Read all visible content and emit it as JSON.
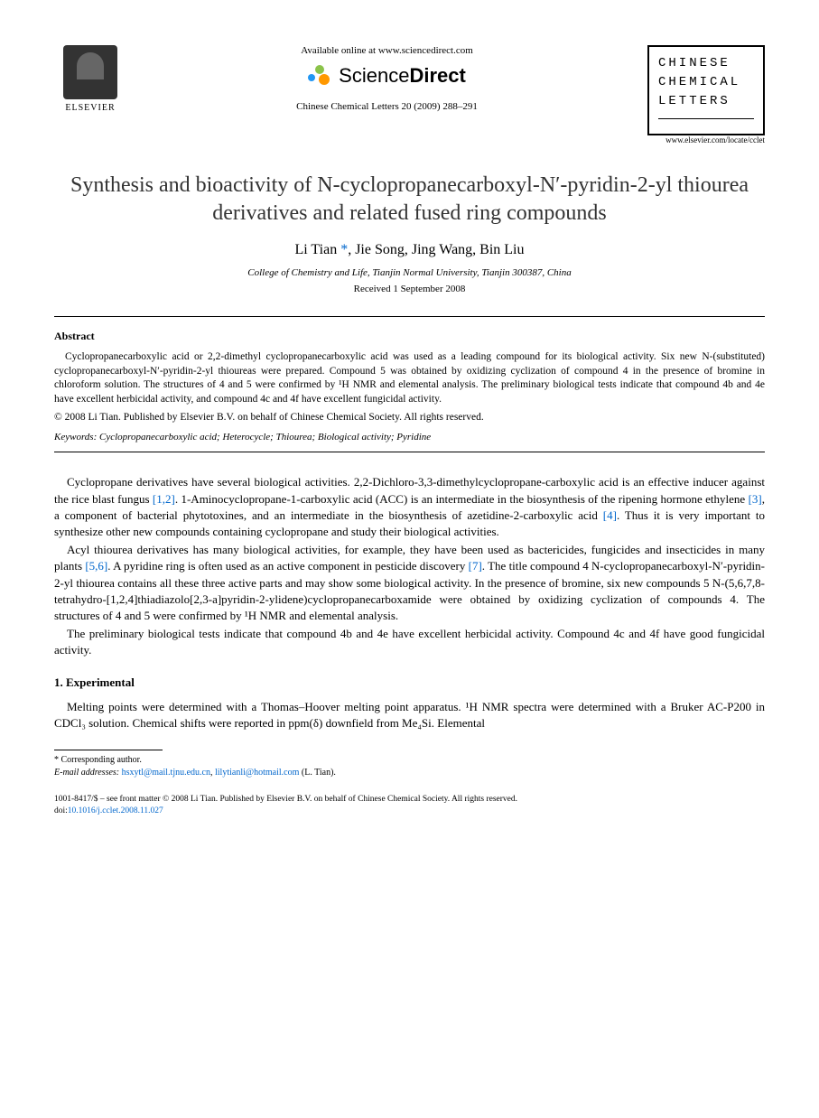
{
  "header": {
    "elsevier": "ELSEVIER",
    "available": "Available online at www.sciencedirect.com",
    "sciencedirect": {
      "part1": "Science",
      "part2": "Direct"
    },
    "journal_ref": "Chinese Chemical Letters 20 (2009) 288–291",
    "journal_box": {
      "line1": "CHINESE",
      "line2": "CHEMICAL",
      "line3": "LETTERS"
    },
    "url": "www.elsevier.com/locate/cclet"
  },
  "title": "Synthesis and bioactivity of N-cyclopropanecarboxyl-N′-pyridin-2-yl thiourea derivatives and related fused ring compounds",
  "authors": "Li Tian *, Jie Song, Jing Wang, Bin Liu",
  "affiliation": "College of Chemistry and Life, Tianjin Normal University, Tianjin 300387, China",
  "received": "Received 1 September 2008",
  "abstract": {
    "heading": "Abstract",
    "body": "Cyclopropanecarboxylic acid or 2,2-dimethyl cyclopropanecarboxylic acid was used as a leading compound for its biological activity. Six new N-(substituted) cyclopropanecarboxyl-N′-pyridin-2-yl thioureas were prepared. Compound 5 was obtained by oxidizing cyclization of compound 4 in the presence of bromine in chloroform solution. The structures of 4 and 5 were confirmed by ¹H NMR and elemental analysis. The preliminary biological tests indicate that compound 4b and 4e have excellent herbicidal activity, and compound 4c and 4f have excellent fungicidal activity.",
    "copyright": "© 2008 Li Tian. Published by Elsevier B.V. on behalf of Chinese Chemical Society. All rights reserved."
  },
  "keywords": {
    "label": "Keywords:",
    "text": " Cyclopropanecarboxylic acid; Heterocycle; Thiourea; Biological activity; Pyridine"
  },
  "body": {
    "p1a": "Cyclopropane derivatives have several biological activities. 2,2-Dichloro-3,3-dimethylcyclopropane-carboxylic acid is an effective inducer against the rice blast fungus ",
    "ref12": "[1,2]",
    "p1b": ". 1-Aminocyclopropane-1-carboxylic acid (ACC) is an intermediate in the biosynthesis of the ripening hormone ethylene ",
    "ref3": "[3]",
    "p1c": ", a component of bacterial phytotoxines, and an intermediate in the biosynthesis of azetidine-2-carboxylic acid ",
    "ref4": "[4]",
    "p1d": ". Thus it is very important to synthesize other new compounds containing cyclopropane and study their biological activities.",
    "p2a": "Acyl thiourea derivatives has many biological activities, for example, they have been used as bactericides, fungicides and insecticides in many plants ",
    "ref56": "[5,6]",
    "p2b": ". A pyridine ring is often used as an active component in pesticide discovery ",
    "ref7": "[7]",
    "p2c": ". The title compound 4 N-cyclopropanecarboxyl-N′-pyridin-2-yl thiourea contains all these three active parts and may show some biological activity. In the presence of bromine, six new compounds 5 N-(5,6,7,8-tetrahydro-[1,2,4]thiadiazolo[2,3-a]pyridin-2-ylidene)cyclopropanecarboxamide were obtained by oxidizing cyclization of compounds 4. The structures of 4 and 5 were confirmed by ¹H NMR and elemental analysis.",
    "p3": "The preliminary biological tests indicate that compound 4b and 4e have excellent herbicidal activity. Compound 4c and 4f have good fungicidal activity."
  },
  "section1": {
    "heading": "1. Experimental",
    "p1": "Melting points were determined with a Thomas–Hoover melting point apparatus. ¹H NMR spectra were determined with a Bruker AC-P200 in CDCl₃ solution. Chemical shifts were reported in ppm(δ) downfield from Me₄Si. Elemental"
  },
  "footnote": {
    "corresponding": "* Corresponding author.",
    "email_label": "E-mail addresses:",
    "email1": "hsxytl@mail.tjnu.edu.cn",
    "email2": "lilytianli@hotmail.com",
    "email_suffix": " (L. Tian)."
  },
  "bottom": {
    "issn": "1001-8417/$ – see front matter © 2008 Li Tian. Published by Elsevier B.V. on behalf of Chinese Chemical Society. All rights reserved.",
    "doi_label": "doi:",
    "doi": "10.1016/j.cclet.2008.11.027"
  },
  "colors": {
    "link": "#0066cc",
    "text": "#000000",
    "background": "#ffffff"
  }
}
